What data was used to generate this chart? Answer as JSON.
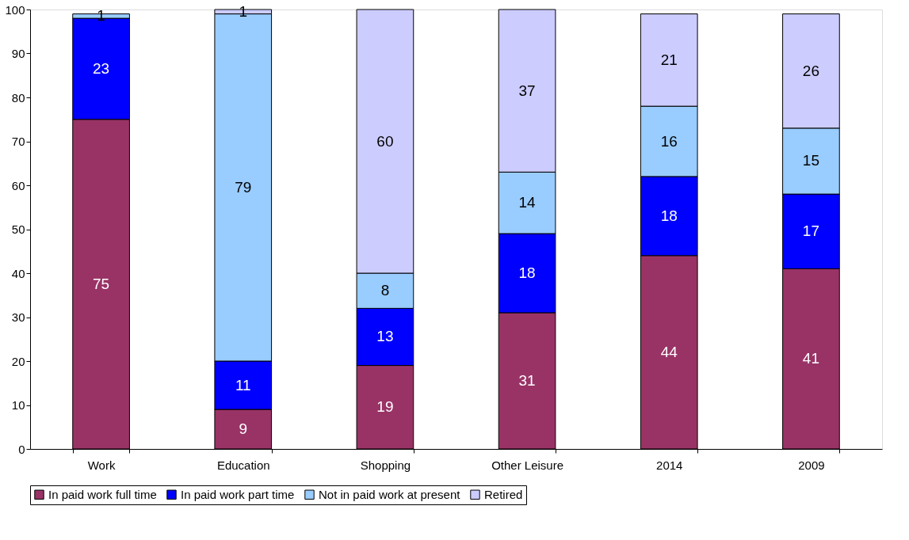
{
  "chart_data": {
    "type": "bar",
    "stacked": true,
    "categories": [
      "Work",
      "Education",
      "Shopping",
      "Other Leisure",
      "2014",
      "2009"
    ],
    "series": [
      {
        "name": "In paid work full time",
        "color": "#993366",
        "values": [
          75,
          9,
          19,
          31,
          44,
          41
        ]
      },
      {
        "name": "In paid work part time",
        "color": "#0000ff",
        "values": [
          23,
          11,
          13,
          18,
          18,
          17
        ]
      },
      {
        "name": "Not in paid work at present",
        "color": "#99ccff",
        "values": [
          1,
          79,
          8,
          14,
          16,
          15
        ]
      },
      {
        "name": "Retired",
        "color": "#ccccff",
        "values": [
          null,
          1,
          60,
          37,
          21,
          26
        ]
      }
    ],
    "ylim": [
      0,
      100
    ],
    "yticks": [
      0,
      10,
      20,
      30,
      40,
      50,
      60,
      70,
      80,
      90,
      100
    ],
    "data_labels": true,
    "legend": "bottom",
    "grid": false
  }
}
